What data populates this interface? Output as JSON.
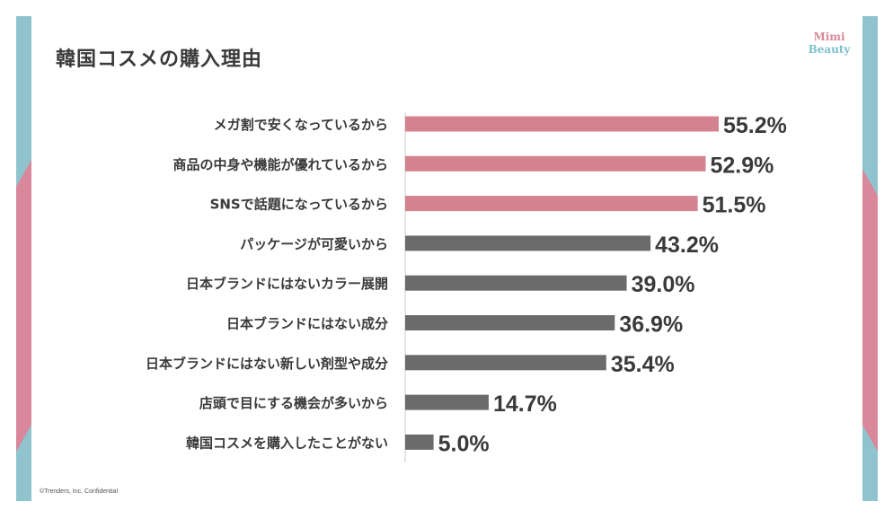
{
  "title": "韓国コスメの購入理由",
  "logo": {
    "line1": "Mimi",
    "line2": "Beauty"
  },
  "copyright": "©Trenders, Inc.  Confidential",
  "colors": {
    "highlight": "#d4828f",
    "default": "#6b6b6b",
    "accent_teal": "#8fc4cf",
    "accent_pink": "#d9879a"
  },
  "chart_data": {
    "type": "bar",
    "orientation": "horizontal",
    "title": "韓国コスメの購入理由",
    "categories": [
      "メガ割で安くなっているから",
      "商品の中身や機能が優れているから",
      "SNSで話題になっているから",
      "パッケージが可愛いから",
      "日本ブランドにはないカラー展開",
      "日本ブランドにはない成分",
      "日本ブランドにはない新しい剤型や成分",
      "店頭で目にする機会が多いから",
      "韓国コスメを購入したことがない"
    ],
    "values": [
      55.2,
      52.9,
      51.5,
      43.2,
      39.0,
      36.9,
      35.4,
      14.7,
      5.0
    ],
    "value_labels": [
      "55.2%",
      "52.9%",
      "51.5%",
      "43.2%",
      "39.0%",
      "36.9%",
      "35.4%",
      "14.7%",
      "5.0%"
    ],
    "highlight": [
      true,
      true,
      true,
      false,
      false,
      false,
      false,
      false,
      false
    ],
    "unit": "%",
    "xlim": [
      0,
      55.2
    ],
    "grid": false,
    "legend": "none"
  }
}
